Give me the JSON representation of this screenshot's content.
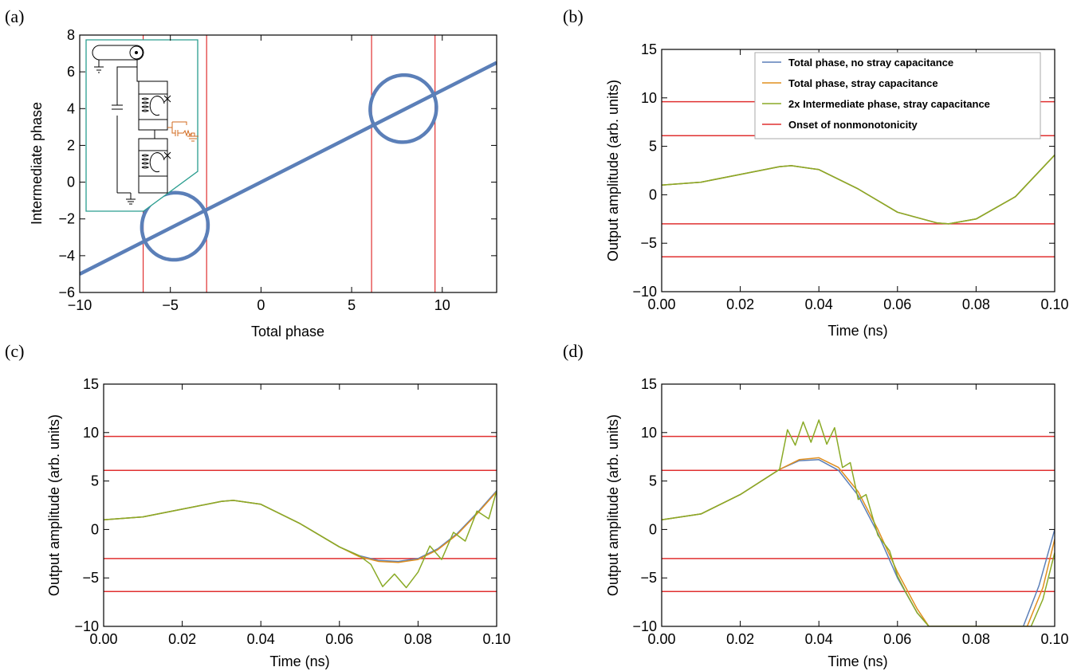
{
  "chart_data": [
    {
      "panel": "(a)",
      "type": "line",
      "xlabel": "Total phase",
      "ylabel": "Intermediate phase",
      "xlim": [
        -10,
        13
      ],
      "ylim": [
        -6,
        8
      ],
      "xticks": [
        "−10",
        "−5",
        "0",
        "5",
        "10"
      ],
      "xtick_values": [
        -10,
        -5,
        0,
        5,
        10
      ],
      "yticks": [
        "−6",
        "−4",
        "−2",
        "0",
        "2",
        "4",
        "6",
        "8"
      ],
      "ytick_values": [
        -6,
        -4,
        -2,
        0,
        2,
        4,
        6,
        8
      ],
      "vlines": [
        -6.5,
        -3.0,
        6.1,
        9.6
      ],
      "series": [
        {
          "kind": "line",
          "x": [
            -10,
            13
          ],
          "y": [
            -5.0,
            6.5
          ]
        },
        {
          "kind": "ellipse",
          "center": [
            -4.75,
            -2.4
          ],
          "rx": 1.85,
          "ry": 1.8,
          "tilt_deg": 45
        },
        {
          "kind": "ellipse",
          "center": [
            7.85,
            4.0
          ],
          "rx": 1.85,
          "ry": 1.8,
          "tilt_deg": 45
        }
      ],
      "inset": "circuit schematic",
      "colors": {
        "curve": "#5b7fb8",
        "vline": "#e03030",
        "inset_border": "#2a9d8f",
        "inset_accent": "#d2691e"
      }
    },
    {
      "panel": "(b)",
      "type": "line",
      "xlabel": "Time (ns)",
      "ylabel": "Output amplitude (arb. units)",
      "xlim": [
        0,
        0.1
      ],
      "ylim": [
        -10,
        15
      ],
      "xticks": [
        "0.00",
        "0.02",
        "0.04",
        "0.06",
        "0.08",
        "0.10"
      ],
      "xtick_values": [
        0,
        0.02,
        0.04,
        0.06,
        0.08,
        0.1
      ],
      "yticks": [
        "−10",
        "−5",
        "0",
        "5",
        "10",
        "15"
      ],
      "ytick_values": [
        -10,
        -5,
        0,
        5,
        10,
        15
      ],
      "hlines": [
        9.6,
        6.1,
        -3.0,
        -6.4
      ],
      "legend_position": "top-right",
      "legend": [
        {
          "label": "Total phase, no stray capacitance",
          "color": "#5b7fb8"
        },
        {
          "label": "Total phase, stray capacitance",
          "color": "#e08f1f"
        },
        {
          "label": "2x Intermediate phase, stray capacitance",
          "color": "#8aaa26"
        },
        {
          "label": "Onset of nonmonotonicity",
          "color": "#e03030"
        }
      ],
      "series": [
        {
          "name": "Total phase, no stray capacitance",
          "x": [
            0,
            0.01,
            0.02,
            0.03,
            0.033,
            0.04,
            0.05,
            0.06,
            0.07,
            0.073,
            0.08,
            0.09,
            0.1
          ],
          "y": [
            1.0,
            1.3,
            2.1,
            2.9,
            3.0,
            2.6,
            0.6,
            -1.8,
            -2.9,
            -3.0,
            -2.5,
            -0.2,
            4.1
          ]
        },
        {
          "name": "Total phase, stray capacitance",
          "x": [
            0,
            0.01,
            0.02,
            0.03,
            0.033,
            0.04,
            0.05,
            0.06,
            0.07,
            0.073,
            0.08,
            0.09,
            0.1
          ],
          "y": [
            1.0,
            1.3,
            2.1,
            2.9,
            3.0,
            2.6,
            0.6,
            -1.8,
            -2.9,
            -3.0,
            -2.5,
            -0.2,
            4.1
          ]
        },
        {
          "name": "2x Intermediate phase, stray capacitance",
          "x": [
            0,
            0.01,
            0.02,
            0.03,
            0.033,
            0.04,
            0.05,
            0.06,
            0.07,
            0.073,
            0.08,
            0.09,
            0.1
          ],
          "y": [
            1.0,
            1.3,
            2.1,
            2.9,
            3.0,
            2.6,
            0.6,
            -1.8,
            -2.9,
            -3.0,
            -2.5,
            -0.2,
            4.1
          ]
        }
      ]
    },
    {
      "panel": "(c)",
      "type": "line",
      "xlabel": "Time (ns)",
      "ylabel": "Output amplitude (arb. units)",
      "xlim": [
        0,
        0.1
      ],
      "ylim": [
        -10,
        15
      ],
      "xticks": [
        "0.00",
        "0.02",
        "0.04",
        "0.06",
        "0.08",
        "0.10"
      ],
      "xtick_values": [
        0,
        0.02,
        0.04,
        0.06,
        0.08,
        0.1
      ],
      "yticks": [
        "−10",
        "−5",
        "0",
        "5",
        "10",
        "15"
      ],
      "ytick_values": [
        -10,
        -5,
        0,
        5,
        10,
        15
      ],
      "hlines": [
        9.6,
        6.1,
        -3.0,
        -6.4
      ],
      "series": [
        {
          "name": "Total phase, no stray capacitance",
          "x": [
            0,
            0.01,
            0.02,
            0.03,
            0.033,
            0.04,
            0.05,
            0.06,
            0.065,
            0.07,
            0.075,
            0.08,
            0.085,
            0.09,
            0.095,
            0.1
          ],
          "y": [
            1.0,
            1.3,
            2.1,
            2.9,
            3.0,
            2.6,
            0.6,
            -1.8,
            -2.7,
            -3.2,
            -3.3,
            -3.0,
            -2.0,
            -0.4,
            1.7,
            4.0
          ]
        },
        {
          "name": "Total phase, stray capacitance",
          "x": [
            0,
            0.01,
            0.02,
            0.03,
            0.033,
            0.04,
            0.05,
            0.06,
            0.065,
            0.07,
            0.075,
            0.08,
            0.085,
            0.09,
            0.095,
            0.1
          ],
          "y": [
            1.0,
            1.3,
            2.1,
            2.9,
            3.0,
            2.6,
            0.6,
            -1.8,
            -2.8,
            -3.3,
            -3.4,
            -3.1,
            -2.1,
            -0.5,
            1.6,
            3.9
          ]
        },
        {
          "name": "2x Intermediate phase, stray capacitance",
          "x": [
            0,
            0.01,
            0.02,
            0.03,
            0.033,
            0.04,
            0.05,
            0.06,
            0.065,
            0.068,
            0.071,
            0.074,
            0.077,
            0.08,
            0.083,
            0.086,
            0.089,
            0.092,
            0.095,
            0.098,
            0.1
          ],
          "y": [
            1.0,
            1.3,
            2.1,
            2.9,
            3.0,
            2.6,
            0.6,
            -1.8,
            -2.7,
            -3.6,
            -5.9,
            -4.6,
            -6.0,
            -4.4,
            -1.7,
            -3.1,
            -0.3,
            -1.2,
            1.9,
            1.1,
            4.0
          ]
        }
      ]
    },
    {
      "panel": "(d)",
      "type": "line",
      "xlabel": "Time (ns)",
      "ylabel": "Output amplitude (arb. units)",
      "xlim": [
        0,
        0.1
      ],
      "ylim": [
        -10,
        15
      ],
      "xticks": [
        "0.00",
        "0.02",
        "0.04",
        "0.06",
        "0.08",
        "0.10"
      ],
      "xtick_values": [
        0,
        0.02,
        0.04,
        0.06,
        0.08,
        0.1
      ],
      "yticks": [
        "−10",
        "−5",
        "0",
        "5",
        "10",
        "15"
      ],
      "ytick_values": [
        -10,
        -5,
        0,
        5,
        10,
        15
      ],
      "hlines": [
        9.6,
        6.1,
        -3.0,
        -6.4
      ],
      "series": [
        {
          "name": "Total phase, no stray capacitance",
          "x": [
            0,
            0.01,
            0.02,
            0.03,
            0.035,
            0.04,
            0.045,
            0.05,
            0.055,
            0.06,
            0.065,
            0.068,
            0.092,
            0.096,
            0.1
          ],
          "y": [
            1.0,
            1.6,
            3.6,
            6.2,
            7.1,
            7.2,
            6.1,
            3.5,
            -0.4,
            -5.0,
            -8.6,
            -10.0,
            -10.0,
            -5.8,
            0.0
          ]
        },
        {
          "name": "Total phase, stray capacitance",
          "x": [
            0,
            0.01,
            0.02,
            0.03,
            0.035,
            0.04,
            0.045,
            0.05,
            0.055,
            0.06,
            0.065,
            0.068,
            0.093,
            0.097,
            0.1
          ],
          "y": [
            1.0,
            1.6,
            3.6,
            6.2,
            7.2,
            7.4,
            6.4,
            3.9,
            0.0,
            -4.4,
            -8.2,
            -10.0,
            -10.0,
            -6.0,
            -1.0
          ]
        },
        {
          "name": "2x Intermediate phase, stray capacitance",
          "x": [
            0,
            0.01,
            0.02,
            0.03,
            0.032,
            0.034,
            0.036,
            0.038,
            0.04,
            0.042,
            0.044,
            0.046,
            0.048,
            0.05,
            0.052,
            0.055,
            0.058,
            0.06,
            0.062,
            0.065,
            0.068,
            0.094,
            0.097,
            0.1
          ],
          "y": [
            1.0,
            1.6,
            3.6,
            6.2,
            10.3,
            8.7,
            11.1,
            9.0,
            11.3,
            8.8,
            10.5,
            6.4,
            6.9,
            3.1,
            3.6,
            -0.6,
            -2.2,
            -4.8,
            -6.4,
            -8.6,
            -10.0,
            -10.0,
            -7.2,
            -2.4
          ]
        }
      ]
    }
  ]
}
